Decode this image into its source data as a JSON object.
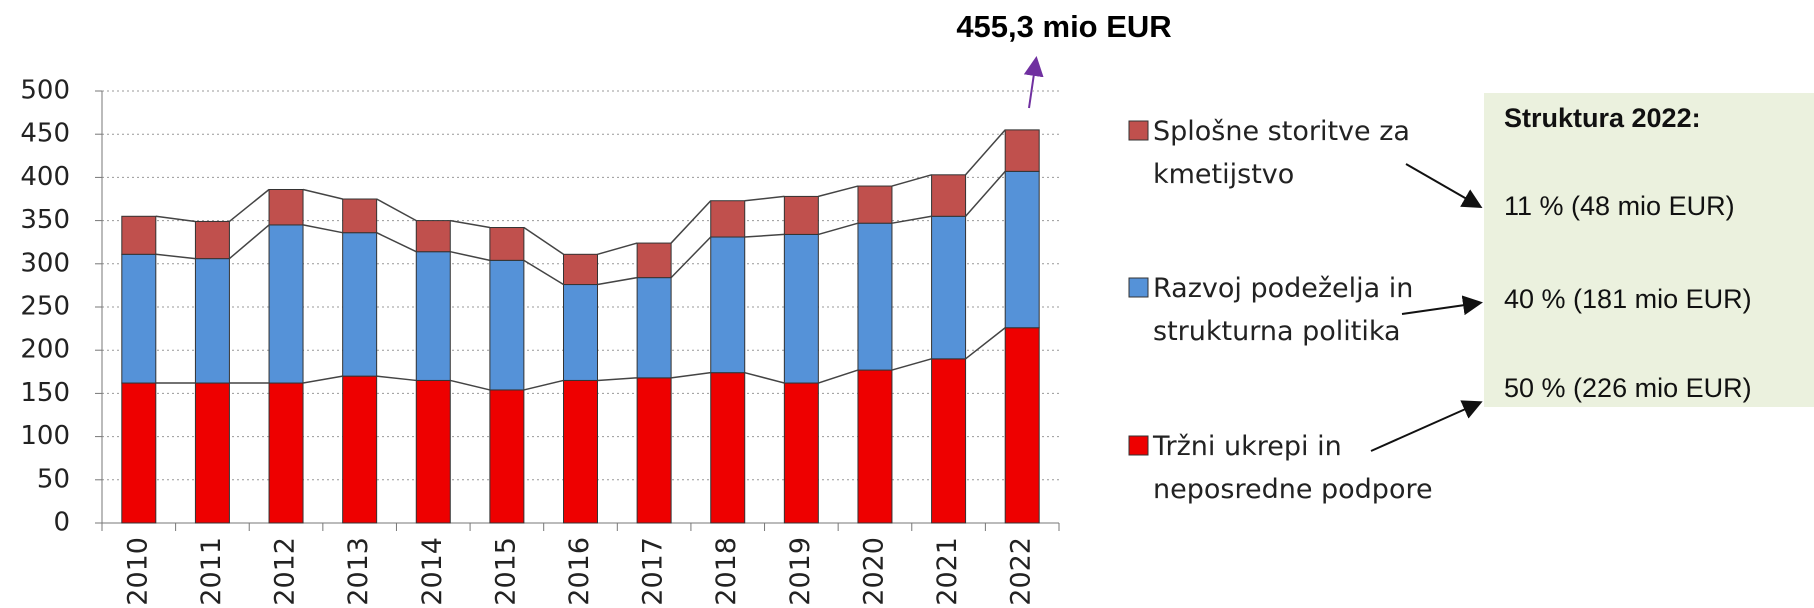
{
  "chart_data": {
    "type": "stacked_bar",
    "categories": [
      "2010",
      "2011",
      "2012",
      "2013",
      "2014",
      "2015",
      "2016",
      "2017",
      "2018",
      "2019",
      "2020",
      "2021",
      "2022"
    ],
    "series": [
      {
        "name": "Tržni ukrepi in neposredne podpore",
        "color": "#ee0000",
        "values": [
          162,
          162,
          162,
          170,
          165,
          154,
          165,
          168,
          174,
          162,
          177,
          190,
          226
        ]
      },
      {
        "name": "Razvoj podeželja in strukturna politika",
        "color": "#5592d8",
        "values": [
          149,
          144,
          183,
          166,
          149,
          150,
          111,
          116,
          157,
          172,
          170,
          165,
          181
        ]
      },
      {
        "name": "Splošne storitve za kmetijstvo",
        "color": "#c0504d",
        "values": [
          44,
          43,
          41,
          39,
          36,
          38,
          35,
          40,
          42,
          44,
          43,
          48,
          48
        ]
      }
    ],
    "ylim": [
      0,
      500
    ],
    "yticks": [
      0,
      50,
      100,
      150,
      200,
      250,
      300,
      350,
      400,
      450,
      500
    ],
    "grid": true,
    "annotation": "455,3 mio EUR",
    "structure_box": {
      "title": "Struktura 2022:",
      "lines": [
        "11 % (48 mio EUR)",
        "40 % (181 mio EUR)",
        "50 % (226 mio EUR)"
      ]
    }
  }
}
